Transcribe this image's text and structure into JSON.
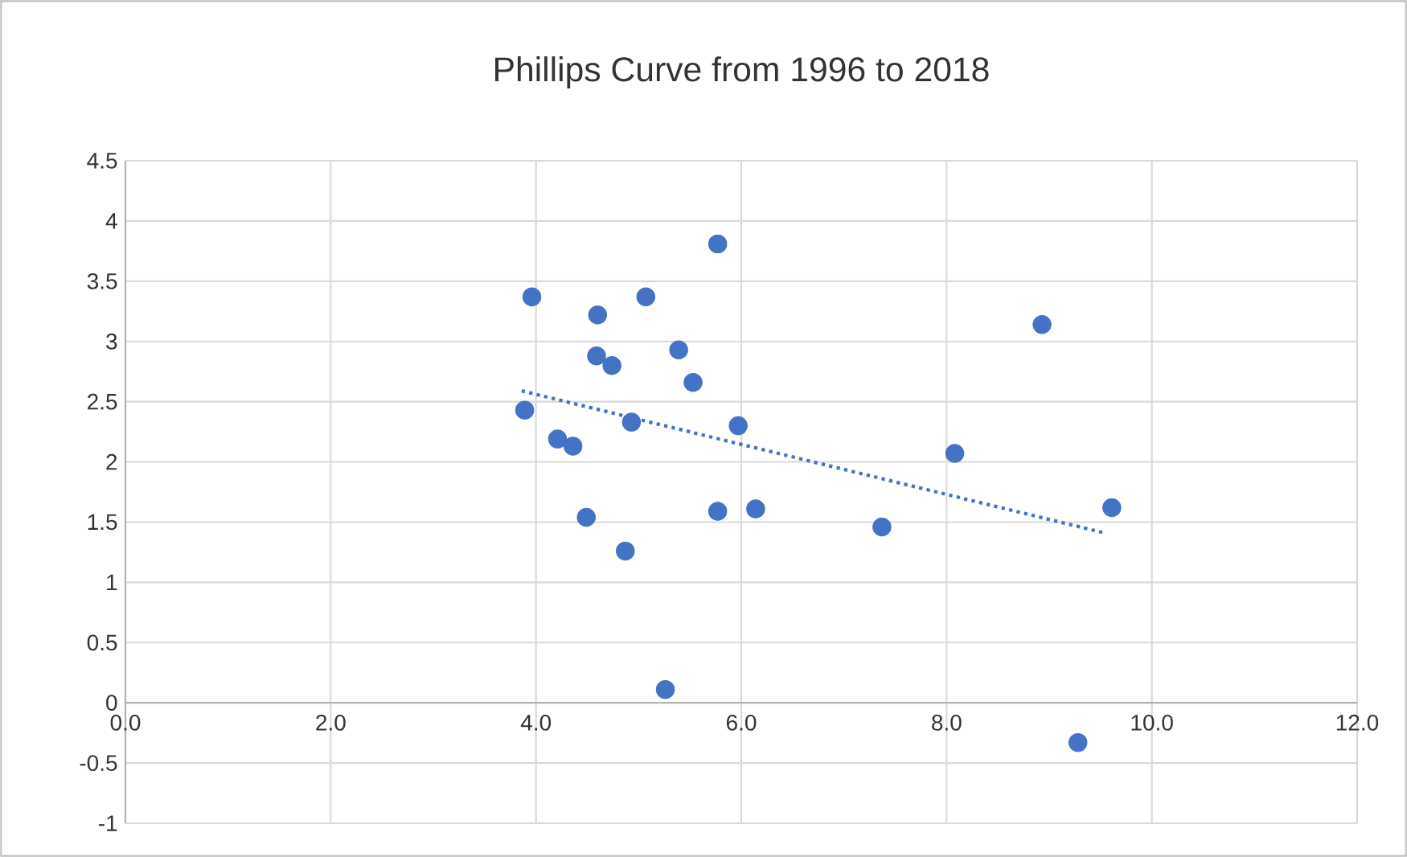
{
  "chart_data": {
    "type": "scatter",
    "title": "Phillips Curve from 1996 to 2018",
    "xlim": [
      0,
      12
    ],
    "xticks": [
      {
        "value": 0,
        "label": "0.0"
      },
      {
        "value": 2,
        "label": "2.0"
      },
      {
        "value": 4,
        "label": "4.0"
      },
      {
        "value": 6,
        "label": "6.0"
      },
      {
        "value": 8,
        "label": "8.0"
      },
      {
        "value": 10,
        "label": "10.0"
      },
      {
        "value": 12,
        "label": "12.0"
      }
    ],
    "ylim": [
      -1,
      4.5
    ],
    "yticks": [
      -1,
      -0.5,
      0,
      0.5,
      1,
      1.5,
      2,
      2.5,
      3,
      3.5,
      4,
      4.5
    ],
    "grid": true,
    "series": [
      {
        "color": "#4472c4",
        "marker": "circle",
        "x": [
          3.96,
          3.89,
          4.21,
          4.36,
          4.6,
          4.59,
          4.74,
          4.49,
          4.87,
          4.93,
          5.07,
          5.26,
          5.39,
          5.53,
          5.77,
          5.77,
          5.97,
          6.14,
          7.37,
          8.08,
          8.93,
          9.61,
          9.28
        ],
        "values": [
          3.37,
          2.43,
          2.19,
          2.13,
          3.22,
          2.88,
          2.8,
          1.54,
          1.26,
          2.33,
          3.37,
          0.11,
          2.93,
          2.66,
          3.81,
          1.59,
          2.3,
          1.61,
          1.46,
          2.07,
          3.14,
          1.62,
          -0.33
        ]
      },
      {
        "type": "line",
        "color": "#4472c4",
        "line_style": "dotted",
        "marker": "none",
        "x": [
          3.86,
          9.54
        ],
        "values": [
          2.59,
          1.41
        ]
      }
    ]
  }
}
